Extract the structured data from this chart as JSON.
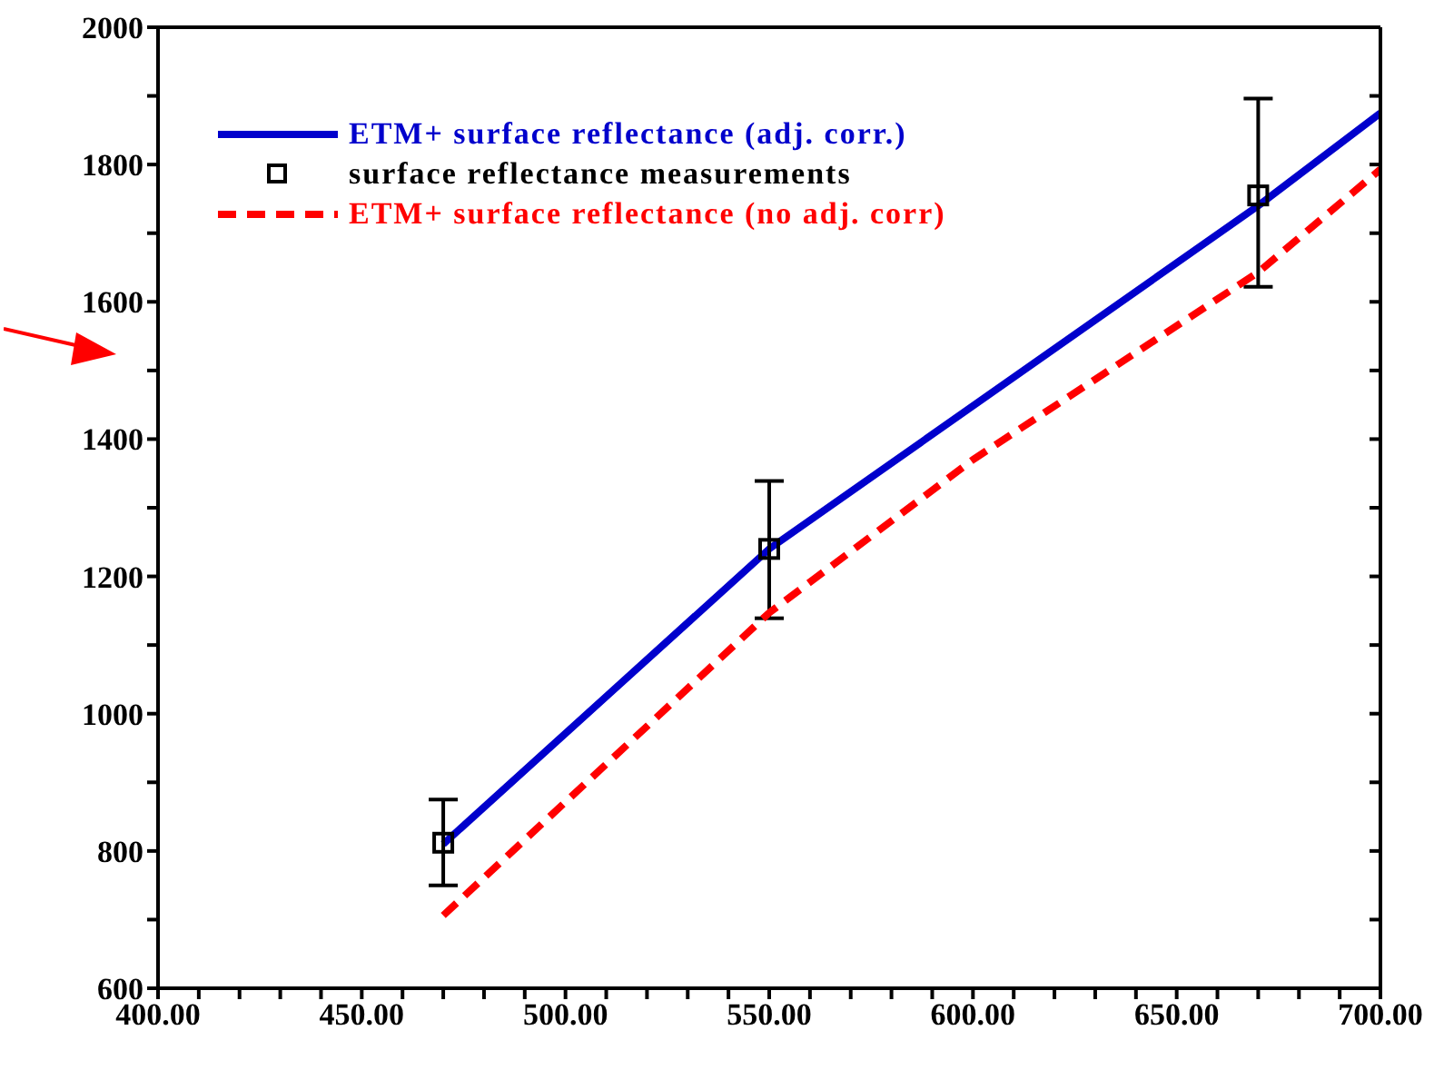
{
  "chart_data": {
    "type": "line",
    "xlim": [
      400,
      700
    ],
    "xticks": [
      {
        "value": 400,
        "label": "400.00"
      },
      {
        "value": 410,
        "label": null
      },
      {
        "value": 420,
        "label": null
      },
      {
        "value": 430,
        "label": null
      },
      {
        "value": 440,
        "label": null
      },
      {
        "value": 450,
        "label": "450.00"
      },
      {
        "value": 460,
        "label": null
      },
      {
        "value": 470,
        "label": null
      },
      {
        "value": 480,
        "label": null
      },
      {
        "value": 490,
        "label": null
      },
      {
        "value": 500,
        "label": "500.00"
      },
      {
        "value": 510,
        "label": null
      },
      {
        "value": 520,
        "label": null
      },
      {
        "value": 530,
        "label": null
      },
      {
        "value": 540,
        "label": null
      },
      {
        "value": 550,
        "label": "550.00"
      },
      {
        "value": 560,
        "label": null
      },
      {
        "value": 570,
        "label": null
      },
      {
        "value": 580,
        "label": null
      },
      {
        "value": 590,
        "label": null
      },
      {
        "value": 600,
        "label": "600.00"
      },
      {
        "value": 610,
        "label": null
      },
      {
        "value": 620,
        "label": null
      },
      {
        "value": 630,
        "label": null
      },
      {
        "value": 640,
        "label": null
      },
      {
        "value": 650,
        "label": "650.00"
      },
      {
        "value": 660,
        "label": null
      },
      {
        "value": 670,
        "label": null
      },
      {
        "value": 680,
        "label": null
      },
      {
        "value": 690,
        "label": null
      },
      {
        "value": 700,
        "label": "700.00"
      }
    ],
    "ylim": [
      600,
      2000
    ],
    "yticks": [
      600,
      {
        "value": 700,
        "label": null
      },
      800,
      {
        "value": 900,
        "label": null
      },
      1000,
      {
        "value": 1100,
        "label": null
      },
      1200,
      {
        "value": 1300,
        "label": null
      },
      1400,
      {
        "value": 1500,
        "label": null
      },
      1600,
      {
        "value": 1700,
        "label": null
      },
      1800,
      {
        "value": 1900,
        "label": null
      },
      2000
    ],
    "grid": false,
    "legend": "top left",
    "series": [
      {
        "name": "ETM+ surface reflectance (adj. corr.)",
        "color": "#0000cc",
        "line_style": "solid",
        "marker": "none",
        "x": [
          470,
          550,
          670,
          700
        ],
        "values": [
          810,
          1240,
          1740,
          1875
        ]
      },
      {
        "name": "surface reflectance measurements",
        "type": "scatter",
        "color": "#000000",
        "marker": "square",
        "x": [
          470,
          550,
          670
        ],
        "values": [
          812,
          1240,
          1755
        ],
        "errors": [
          [
            750,
            875
          ],
          [
            1139,
            1339
          ],
          [
            1622,
            1896
          ]
        ]
      },
      {
        "name": "ETM+ surface reflectance (no adj. corr)",
        "color": "#ff0000",
        "line_style": "dashed",
        "marker": "none",
        "x": [
          470,
          550,
          600,
          670,
          700
        ],
        "values": [
          706,
          1147,
          1370,
          1643,
          1793
        ]
      }
    ]
  }
}
